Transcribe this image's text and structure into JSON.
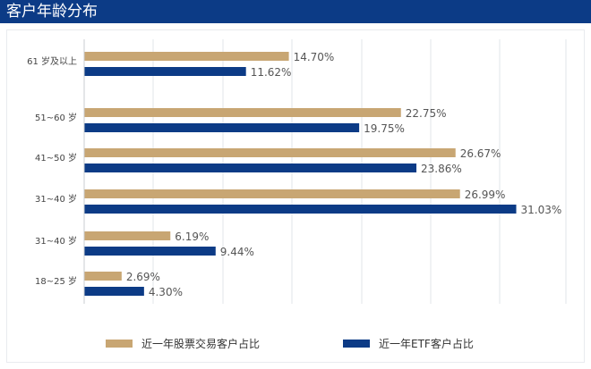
{
  "header": {
    "title": "客户年龄分布"
  },
  "colors": {
    "header_bg": "#0c3b86",
    "stock": "#c8a673",
    "etf": "#0c3b86",
    "grid": "#e2e4e8"
  },
  "chart_data": {
    "type": "bar",
    "orientation": "horizontal",
    "categories": [
      "61 岁及以上",
      "51~60 岁",
      "41~50 岁",
      "31~40 岁",
      "31~40 岁",
      "18~25 岁"
    ],
    "series": [
      {
        "name": "近一年股票交易客户占比",
        "values": [
          14.7,
          22.75,
          26.67,
          26.99,
          6.19,
          2.69
        ],
        "labels": [
          "14.70%",
          "22.75%",
          "26.67%",
          "26.99%",
          "6.19%",
          "2.69%"
        ],
        "color": "#c8a673"
      },
      {
        "name": "近一年ETF客户占比",
        "values": [
          11.62,
          19.75,
          23.86,
          31.03,
          9.44,
          4.3
        ],
        "labels": [
          "11.62%",
          "19.75%",
          "23.86%",
          "31.03%",
          "9.44%",
          "4.30%"
        ],
        "color": "#0c3b86"
      }
    ],
    "xlim": [
      0,
      35
    ],
    "grid": true,
    "legend_position": "bottom"
  }
}
